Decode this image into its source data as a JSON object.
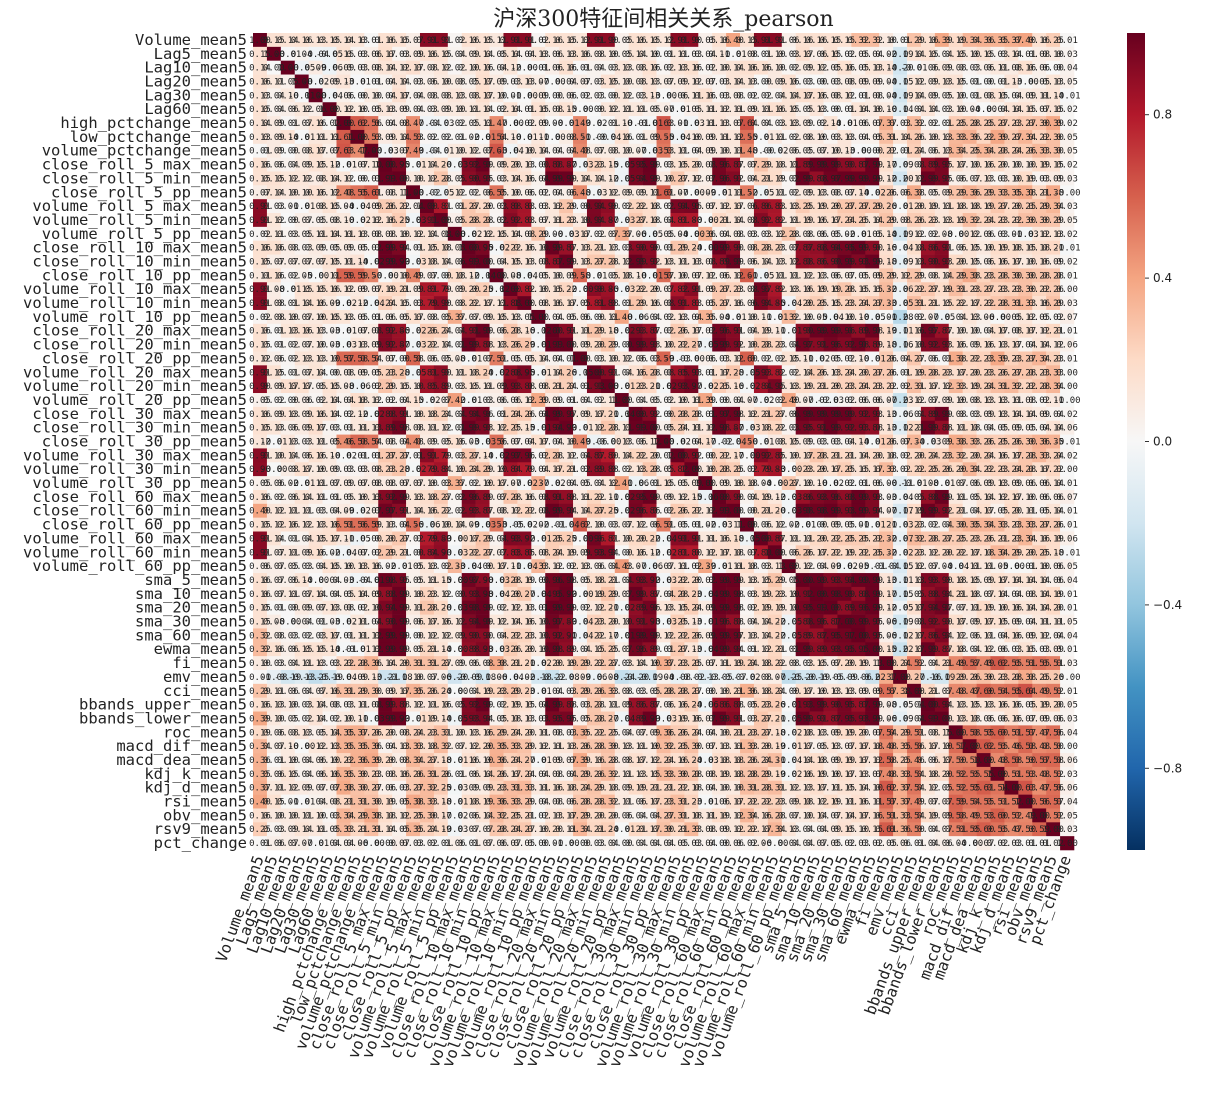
{
  "chart_data": {
    "type": "heatmap",
    "title": "沪深300特征间相关关系_pearson",
    "labels": [
      "Volume_mean5",
      "Lag5_mean5",
      "Lag10_mean5",
      "Lag20_mean5",
      "Lag30_mean5",
      "Lag60_mean5",
      "high_pctchange_mean5",
      "low_pctchange_mean5",
      "volume_pctchange_mean5",
      "close_roll_5_max_mean5",
      "close_roll_5_min_mean5",
      "close_roll_5_pp_mean5",
      "volume_roll_5_max_mean5",
      "volume_roll_5_min_mean5",
      "volume_roll_5_pp_mean5",
      "close_roll_10_max_mean5",
      "close_roll_10_min_mean5",
      "close_roll_10_pp_mean5",
      "volume_roll_10_max_mean5",
      "volume_roll_10_min_mean5",
      "volume_roll_10_pp_mean5",
      "close_roll_20_max_mean5",
      "close_roll_20_min_mean5",
      "close_roll_20_pp_mean5",
      "volume_roll_20_max_mean5",
      "volume_roll_20_min_mean5",
      "volume_roll_20_pp_mean5",
      "close_roll_30_max_mean5",
      "close_roll_30_min_mean5",
      "close_roll_30_pp_mean5",
      "volume_roll_30_max_mean5",
      "volume_roll_30_min_mean5",
      "volume_roll_30_pp_mean5",
      "close_roll_60_max_mean5",
      "close_roll_60_min_mean5",
      "close_roll_60_pp_mean5",
      "volume_roll_60_max_mean5",
      "volume_roll_60_min_mean5",
      "volume_roll_60_pp_mean5",
      "sma_5_mean5",
      "sma_10_mean5",
      "sma_20_mean5",
      "sma_30_mean5",
      "sma_60_mean5",
      "ewma_mean5",
      "fi_mean5",
      "emv_mean5",
      "cci_mean5",
      "bbands_upper_mean5",
      "bbands_lower_mean5",
      "roc_mean5",
      "macd_dif_mean5",
      "macd_dea_mean5",
      "kdj_k_mean5",
      "kdj_d_mean5",
      "rsi_mean5",
      "obv_mean5",
      "rsv9_mean5",
      "pct_change"
    ],
    "first_row": [
      1.0,
      0.15,
      0.14,
      0.16,
      0.13,
      0.15,
      0.14,
      0.13,
      0.01,
      0.16,
      0.15,
      0.07,
      0.91,
      0.91,
      0.02,
      0.16,
      0.15,
      0.11,
      0.91,
      0.91,
      0.02,
      0.16,
      0.15,
      0.12,
      0.91,
      0.9,
      0.05,
      0.16,
      0.15,
      0.12,
      0.91,
      0.9,
      0.05,
      0.16,
      0.4,
      0.15,
      0.91,
      0.91,
      0.06,
      0.16,
      0.16,
      0.15,
      0.15,
      0.32,
      0.32,
      0.1,
      0.01,
      0.29,
      0.16,
      0.39,
      0.19,
      0.34,
      0.36,
      0.35,
      0.37,
      0.4,
      0.16,
      0.25,
      0.01
    ],
    "colorbar": {
      "ticks": [
        0.8,
        0.4,
        0.0,
        -0.4,
        -0.8
      ],
      "tick_labels": [
        "0.8",
        "0.4",
        "0.0",
        "−0.4",
        "−0.8"
      ],
      "range": [
        -1.0,
        1.0
      ],
      "colormap": [
        "#67001f",
        "#b2182b",
        "#d6604d",
        "#f4a582",
        "#fddbc7",
        "#f7f7f7",
        "#d1e5f0",
        "#92c5de",
        "#4393c3",
        "#2166ac",
        "#053061"
      ]
    },
    "annot": true,
    "grid": false
  }
}
